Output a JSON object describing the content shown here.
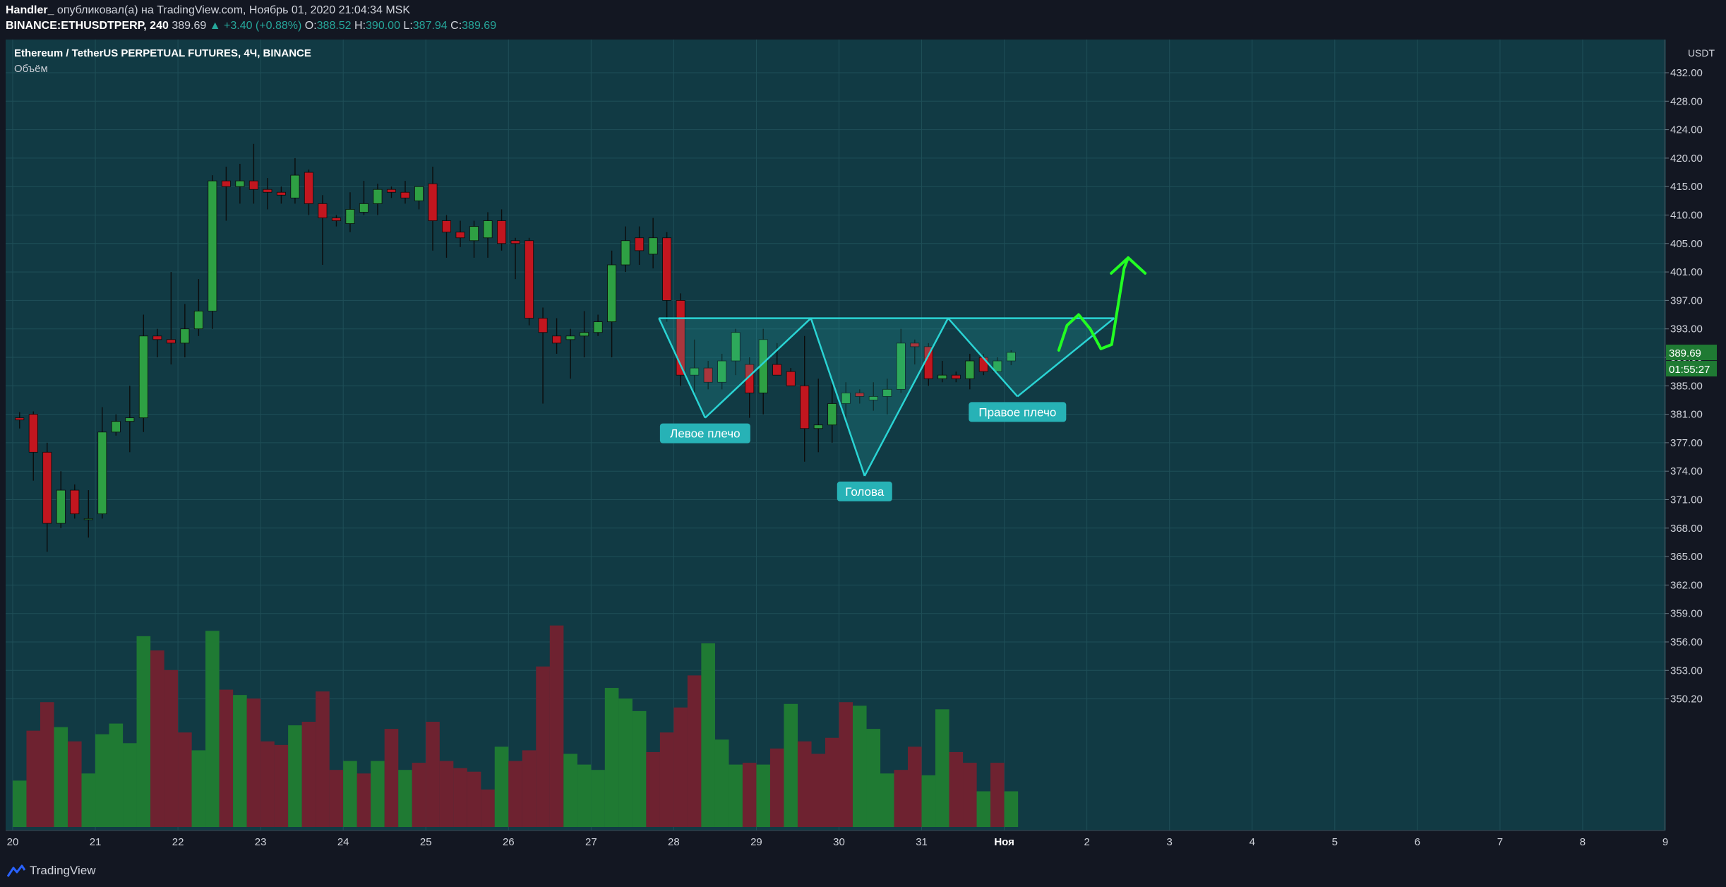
{
  "header": {
    "author": "Handler_",
    "published_text": "опубликовал(а) на TradingView.com, Ноябрь 01, 2020 21:04:34 MSK",
    "symbol": "BINANCE:ETHUSDTPERP, 240",
    "last": "389.69",
    "change": "▲ +3.40 (+0.88%)",
    "o_label": "O:",
    "o_value": "388.52",
    "h_label": "H:",
    "h_value": "390.00",
    "l_label": "L:",
    "l_value": "387.94",
    "c_label": "C:",
    "c_value": "389.69"
  },
  "footer": {
    "brand": "TradingView"
  },
  "colors": {
    "background": "#113a44",
    "up": "#2ea043",
    "down": "#c2161f",
    "vol_up": "#1f7a33",
    "vol_down": "#6e2230",
    "pattern": "#2ad4d4",
    "arrow": "#22ff22",
    "label_bg": "#27b2b6"
  },
  "chart_data": {
    "type": "candlestick",
    "title": "Ethereum / TetherUS PERPETUAL FUTURES, 4Ч, BINANCE",
    "volume_label": "Объём",
    "currency": "USDT",
    "y_ticks": [
      "432.00",
      "428.00",
      "424.00",
      "420.00",
      "415.00",
      "410.00",
      "405.00",
      "401.00",
      "397.00",
      "393.00",
      "389.00",
      "385.00",
      "381.00",
      "377.00",
      "374.00",
      "371.00",
      "368.00",
      "365.00",
      "362.00",
      "359.00",
      "356.00",
      "353.00",
      "350.20"
    ],
    "x_ticks": [
      "20",
      "21",
      "22",
      "23",
      "24",
      "25",
      "26",
      "27",
      "28",
      "29",
      "30",
      "31",
      "Ноя",
      "2",
      "3",
      "4",
      "5",
      "6",
      "7",
      "8",
      "9"
    ],
    "price_tag": "389.69",
    "countdown": "01:55:27",
    "candles": [
      [
        380.5,
        381.3,
        379.0,
        380.2
      ],
      [
        381.0,
        381.4,
        373.0,
        376.0
      ],
      [
        376.0,
        377.0,
        365.5,
        368.5
      ],
      [
        368.5,
        374.0,
        368.0,
        372.0
      ],
      [
        372.0,
        372.6,
        369.0,
        369.5
      ],
      [
        369.0,
        372.0,
        367.0,
        369.0
      ],
      [
        369.5,
        382.0,
        369.0,
        378.5
      ],
      [
        378.5,
        381.0,
        378.0,
        380.0
      ],
      [
        380.0,
        385.0,
        376.0,
        380.5
      ],
      [
        380.5,
        395.0,
        378.5,
        392.0
      ],
      [
        392.0,
        393.0,
        389.0,
        391.5
      ],
      [
        391.5,
        401.0,
        388.0,
        391.0
      ],
      [
        391.0,
        396.5,
        389.0,
        393.0
      ],
      [
        393.0,
        400.0,
        392.0,
        395.5
      ],
      [
        395.5,
        417.0,
        393.0,
        416.0
      ],
      [
        416.0,
        418.5,
        409.0,
        415.0
      ],
      [
        415.0,
        419.0,
        412.0,
        416.0
      ],
      [
        416.0,
        422.0,
        412.0,
        414.5
      ],
      [
        414.5,
        416.5,
        411.0,
        414.0
      ],
      [
        414.0,
        415.0,
        412.0,
        413.5
      ],
      [
        413.0,
        420.0,
        412.0,
        417.0
      ],
      [
        417.5,
        418.0,
        410.0,
        412.0
      ],
      [
        412.0,
        413.5,
        402.0,
        409.5
      ],
      [
        409.5,
        410.0,
        408.0,
        409.0
      ],
      [
        408.5,
        414.0,
        407.0,
        411.0
      ],
      [
        410.5,
        416.0,
        410.0,
        412.0
      ],
      [
        412.0,
        415.5,
        410.0,
        414.5
      ],
      [
        414.5,
        415.0,
        413.0,
        414.0
      ],
      [
        414.0,
        416.0,
        412.0,
        413.0
      ],
      [
        412.5,
        415.0,
        411.0,
        415.0
      ],
      [
        415.5,
        418.5,
        404.0,
        409.0
      ],
      [
        409.0,
        410.0,
        403.0,
        407.0
      ],
      [
        407.0,
        409.0,
        404.5,
        406.0
      ],
      [
        405.5,
        409.0,
        403.0,
        408.0
      ],
      [
        406.0,
        410.5,
        403.0,
        409.0
      ],
      [
        409.0,
        411.0,
        404.0,
        405.0
      ],
      [
        405.5,
        406.0,
        400.0,
        405.0
      ],
      [
        405.5,
        406.0,
        393.5,
        394.5
      ],
      [
        394.5,
        396.0,
        382.5,
        392.5
      ],
      [
        392.0,
        394.5,
        389.5,
        391.0
      ],
      [
        391.5,
        393.0,
        386.0,
        392.0
      ],
      [
        392.0,
        395.5,
        389.0,
        392.5
      ],
      [
        392.5,
        395.0,
        392.0,
        394.0
      ],
      [
        394.0,
        404.0,
        389.0,
        402.0
      ],
      [
        402.0,
        408.0,
        401.0,
        405.5
      ],
      [
        406.0,
        408.0,
        402.0,
        404.0
      ],
      [
        403.5,
        409.5,
        401.5,
        406.0
      ],
      [
        406.0,
        407.0,
        394.0,
        397.0
      ],
      [
        397.0,
        398.0,
        385.0,
        386.5
      ],
      [
        386.5,
        391.5,
        384.0,
        387.5
      ],
      [
        387.5,
        388.5,
        384.5,
        385.5
      ],
      [
        385.5,
        389.5,
        384.5,
        388.5
      ],
      [
        388.5,
        393.0,
        386.5,
        392.5
      ],
      [
        388.0,
        389.0,
        380.5,
        384.0
      ],
      [
        384.0,
        393.0,
        381.0,
        391.5
      ],
      [
        388.0,
        391.0,
        386.5,
        386.5
      ],
      [
        387.0,
        387.5,
        385.0,
        385.0
      ],
      [
        385.0,
        392.0,
        375.0,
        379.0
      ],
      [
        379.0,
        386.0,
        376.0,
        379.5
      ],
      [
        379.5,
        386.0,
        377.0,
        382.5
      ],
      [
        382.5,
        385.5,
        380.0,
        384.0
      ],
      [
        384.0,
        384.5,
        382.5,
        383.5
      ],
      [
        383.0,
        385.5,
        381.5,
        383.5
      ],
      [
        383.5,
        386.0,
        381.0,
        384.5
      ],
      [
        384.5,
        393.0,
        384.0,
        391.0
      ],
      [
        391.0,
        391.5,
        388.0,
        390.5
      ],
      [
        390.5,
        391.0,
        385.0,
        386.0
      ],
      [
        386.0,
        388.5,
        385.5,
        386.5
      ],
      [
        386.5,
        387.0,
        385.5,
        386.0
      ],
      [
        386.0,
        389.5,
        384.5,
        388.5
      ],
      [
        389.0,
        389.5,
        386.5,
        387.0
      ],
      [
        387.0,
        389.0,
        386.5,
        388.5
      ],
      [
        388.5,
        390.0,
        387.9,
        389.7
      ]
    ],
    "volumes": [
      {
        "v": 13.0,
        "up": true
      },
      {
        "v": 27.0,
        "up": false
      },
      {
        "v": 35.0,
        "up": false
      },
      {
        "v": 28.0,
        "up": true
      },
      {
        "v": 24.0,
        "up": false
      },
      {
        "v": 15.0,
        "up": true
      },
      {
        "v": 26.0,
        "up": true
      },
      {
        "v": 29.0,
        "up": true
      },
      {
        "v": 23.5,
        "up": true
      },
      {
        "v": 53.5,
        "up": true
      },
      {
        "v": 49.5,
        "up": false
      },
      {
        "v": 44.0,
        "up": false
      },
      {
        "v": 26.5,
        "up": false
      },
      {
        "v": 21.5,
        "up": true
      },
      {
        "v": 55.0,
        "up": true
      },
      {
        "v": 38.5,
        "up": false
      },
      {
        "v": 37.0,
        "up": true
      },
      {
        "v": 36.0,
        "up": false
      },
      {
        "v": 24.0,
        "up": false
      },
      {
        "v": 23.0,
        "up": false
      },
      {
        "v": 28.5,
        "up": true
      },
      {
        "v": 29.5,
        "up": false
      },
      {
        "v": 38.0,
        "up": false
      },
      {
        "v": 16.0,
        "up": false
      },
      {
        "v": 18.5,
        "up": true
      },
      {
        "v": 15.0,
        "up": false
      },
      {
        "v": 18.5,
        "up": true
      },
      {
        "v": 27.5,
        "up": false
      },
      {
        "v": 16.0,
        "up": true
      },
      {
        "v": 18.0,
        "up": false
      },
      {
        "v": 29.5,
        "up": false
      },
      {
        "v": 18.5,
        "up": false
      },
      {
        "v": 16.5,
        "up": false
      },
      {
        "v": 15.5,
        "up": false
      },
      {
        "v": 10.5,
        "up": false
      },
      {
        "v": 22.5,
        "up": true
      },
      {
        "v": 18.5,
        "up": false
      },
      {
        "v": 21.5,
        "up": false
      },
      {
        "v": 45.0,
        "up": false
      },
      {
        "v": 56.5,
        "up": false
      },
      {
        "v": 20.5,
        "up": true
      },
      {
        "v": 17.5,
        "up": true
      },
      {
        "v": 16.0,
        "up": true
      },
      {
        "v": 39.0,
        "up": true
      },
      {
        "v": 36.0,
        "up": true
      },
      {
        "v": 32.5,
        "up": true
      },
      {
        "v": 21.0,
        "up": false
      },
      {
        "v": 26.5,
        "up": false
      },
      {
        "v": 33.5,
        "up": false
      },
      {
        "v": 42.5,
        "up": false
      },
      {
        "v": 51.5,
        "up": true
      },
      {
        "v": 24.5,
        "up": true
      },
      {
        "v": 17.5,
        "up": true
      },
      {
        "v": 18.0,
        "up": false
      },
      {
        "v": 17.5,
        "up": true
      },
      {
        "v": 22.0,
        "up": false
      },
      {
        "v": 34.5,
        "up": true
      },
      {
        "v": 24.0,
        "up": false
      },
      {
        "v": 20.5,
        "up": false
      },
      {
        "v": 25.0,
        "up": false
      },
      {
        "v": 35.0,
        "up": false
      },
      {
        "v": 34.0,
        "up": true
      },
      {
        "v": 27.5,
        "up": true
      },
      {
        "v": 15.0,
        "up": true
      },
      {
        "v": 16.0,
        "up": false
      },
      {
        "v": 22.5,
        "up": false
      },
      {
        "v": 14.5,
        "up": true
      },
      {
        "v": 33.0,
        "up": true
      },
      {
        "v": 21.0,
        "up": false
      },
      {
        "v": 18.0,
        "up": false
      },
      {
        "v": 10.0,
        "up": true
      },
      {
        "v": 18.0,
        "up": false
      },
      {
        "v": 10.0,
        "up": true
      }
    ],
    "pattern_lines": [
      [
        [
          7.82,
          394.5
        ],
        [
          8.38,
          380.5
        ]
      ],
      [
        [
          8.38,
          380.5
        ],
        [
          9.66,
          394.5
        ]
      ],
      [
        [
          9.66,
          394.5
        ],
        [
          10.31,
          373.5
        ]
      ],
      [
        [
          10.31,
          373.5
        ],
        [
          11.32,
          394.5
        ]
      ],
      [
        [
          11.32,
          394.5
        ],
        [
          12.16,
          383.5
        ]
      ],
      [
        [
          12.16,
          383.5
        ],
        [
          13.33,
          394.5
        ]
      ],
      [
        [
          7.82,
          394.5
        ],
        [
          13.33,
          394.5
        ]
      ]
    ],
    "pattern_fills": [
      [
        [
          7.82,
          394.5
        ],
        [
          8.38,
          380.5
        ],
        [
          9.66,
          394.5
        ]
      ],
      [
        [
          9.66,
          394.5
        ],
        [
          10.31,
          373.5
        ],
        [
          11.32,
          394.5
        ]
      ],
      [
        [
          11.32,
          394.5
        ],
        [
          12.16,
          383.5
        ],
        [
          13.33,
          394.5
        ]
      ]
    ],
    "arrow_path": [
      [
        12.66,
        390
      ],
      [
        12.76,
        393.5
      ],
      [
        12.9,
        395
      ],
      [
        13.04,
        393
      ],
      [
        13.17,
        390.2
      ],
      [
        13.3,
        390.8
      ],
      [
        13.45,
        401.5
      ],
      [
        13.5,
        403
      ]
    ],
    "annotations": [
      {
        "text": "Левое плечо",
        "x": 8.38,
        "y": 380.5
      },
      {
        "text": "Голова",
        "x": 10.31,
        "y": 373.5
      },
      {
        "text": "Правое плечо",
        "x": 12.16,
        "y": 383.5
      }
    ]
  }
}
